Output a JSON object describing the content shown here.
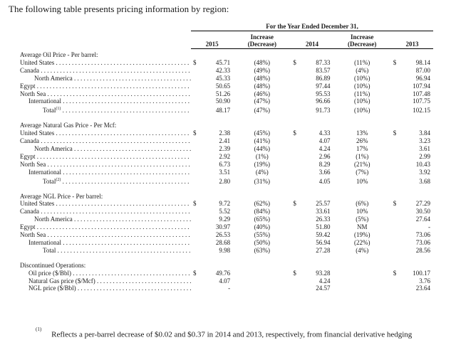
{
  "intro": "The following table presents pricing information by region:",
  "period_title": "For the Year Ended December 31,",
  "headers": {
    "y2015": "2015",
    "inc1": "Increase\n(Decrease)",
    "y2014": "2014",
    "inc2": "Increase\n(Decrease)",
    "y2013": "2013"
  },
  "sections": [
    {
      "title": "Average Oil Price - Per barrel:",
      "rows": [
        {
          "label": "United States",
          "indent": 1,
          "dots": true,
          "dollar": true,
          "v2015": "45.71",
          "c1": "(48%)",
          "v2014": "87.33",
          "c2": "(11%)",
          "v2013": "98.14"
        },
        {
          "label": "Canada",
          "indent": 1,
          "dots": true,
          "dollar": false,
          "v2015": "42.33",
          "c1": "(49%)",
          "v2014": "83.57",
          "c2": "(4%)",
          "v2013": "87.00"
        },
        {
          "label": "North America",
          "indent": 3,
          "dots": true,
          "dollar": false,
          "v2015": "45.33",
          "c1": "(48%)",
          "v2014": "86.89",
          "c2": "(10%)",
          "v2013": "96.94"
        },
        {
          "label": "Egypt",
          "indent": 1,
          "dots": true,
          "dollar": false,
          "v2015": "50.65",
          "c1": "(48%)",
          "v2014": "97.44",
          "c2": "(10%)",
          "v2013": "107.94"
        },
        {
          "label": "North Sea",
          "indent": 1,
          "dots": true,
          "dollar": false,
          "v2015": "51.26",
          "c1": "(46%)",
          "v2014": "95.53",
          "c2": "(11%)",
          "v2013": "107.48"
        },
        {
          "label": "International",
          "indent": 2,
          "dots": true,
          "dollar": false,
          "v2015": "50.90",
          "c1": "(47%)",
          "v2014": "96.66",
          "c2": "(10%)",
          "v2013": "107.75"
        },
        {
          "label": "Total",
          "fn": "(1)",
          "indent": 4,
          "dots": true,
          "dollar": false,
          "v2015": "48.17",
          "c1": "(47%)",
          "v2014": "91.73",
          "c2": "(10%)",
          "v2013": "102.15"
        }
      ]
    },
    {
      "title": "Average Natural Gas Price - Per Mcf:",
      "rows": [
        {
          "label": "United States",
          "indent": 1,
          "dots": true,
          "dollar": true,
          "v2015": "2.38",
          "c1": "(45%)",
          "v2014": "4.33",
          "c2": "13%",
          "v2013": "3.84"
        },
        {
          "label": "Canada",
          "indent": 1,
          "dots": true,
          "dollar": false,
          "v2015": "2.41",
          "c1": "(41%)",
          "v2014": "4.07",
          "c2": "26%",
          "v2013": "3.23"
        },
        {
          "label": "North America",
          "indent": 3,
          "dots": true,
          "dollar": false,
          "v2015": "2.39",
          "c1": "(44%)",
          "v2014": "4.24",
          "c2": "17%",
          "v2013": "3.61"
        },
        {
          "label": "Egypt",
          "indent": 1,
          "dots": true,
          "dollar": false,
          "v2015": "2.92",
          "c1": "(1%)",
          "v2014": "2.96",
          "c2": "(1%)",
          "v2013": "2.99"
        },
        {
          "label": "North Sea",
          "indent": 1,
          "dots": true,
          "dollar": false,
          "v2015": "6.73",
          "c1": "(19%)",
          "v2014": "8.29",
          "c2": "(21%)",
          "v2013": "10.43"
        },
        {
          "label": "International",
          "indent": 2,
          "dots": true,
          "dollar": false,
          "v2015": "3.51",
          "c1": "(4%)",
          "v2014": "3.66",
          "c2": "(7%)",
          "v2013": "3.92"
        },
        {
          "label": "Total",
          "fn": "(2)",
          "indent": 4,
          "dots": true,
          "dollar": false,
          "v2015": "2.80",
          "c1": "(31%)",
          "v2014": "4.05",
          "c2": "10%",
          "v2013": "3.68"
        }
      ]
    },
    {
      "title": "Average NGL Price - Per barrel:",
      "rows": [
        {
          "label": "United States",
          "indent": 1,
          "dots": true,
          "dollar": true,
          "v2015": "9.72",
          "c1": "(62%)",
          "v2014": "25.57",
          "c2": "(6%)",
          "v2013": "27.29"
        },
        {
          "label": "Canada",
          "indent": 1,
          "dots": true,
          "dollar": false,
          "v2015": "5.52",
          "c1": "(84%)",
          "v2014": "33.61",
          "c2": "10%",
          "v2013": "30.50"
        },
        {
          "label": "North America",
          "indent": 3,
          "dots": true,
          "dollar": false,
          "v2015": "9.29",
          "c1": "(65%)",
          "v2014": "26.33",
          "c2": "(5%)",
          "v2013": "27.64"
        },
        {
          "label": "Egypt",
          "indent": 1,
          "dots": true,
          "dollar": false,
          "v2015": "30.97",
          "c1": "(40%)",
          "v2014": "51.80",
          "c2": "NM",
          "v2013": "-"
        },
        {
          "label": "North Sea",
          "indent": 1,
          "dots": true,
          "dollar": false,
          "v2015": "26.53",
          "c1": "(55%)",
          "v2014": "59.42",
          "c2": "(19%)",
          "v2013": "73.06"
        },
        {
          "label": "International",
          "indent": 2,
          "dots": true,
          "dollar": false,
          "v2015": "28.68",
          "c1": "(50%)",
          "v2014": "56.94",
          "c2": "(22%)",
          "v2013": "73.06"
        },
        {
          "label": "Total",
          "indent": 4,
          "dots": true,
          "dollar": false,
          "v2015": "9.98",
          "c1": "(63%)",
          "v2014": "27.28",
          "c2": "(4%)",
          "v2013": "28.56"
        }
      ]
    },
    {
      "title": "Discontinued Operations:",
      "rows": [
        {
          "label": "Oil price ($/Bbl)",
          "indent": 2,
          "dots": true,
          "dollar": true,
          "v2015": "49.76",
          "c1": "",
          "v2014": "93.28",
          "c2": "",
          "v2013": "100.17"
        },
        {
          "label": "Natural Gas price ($/Mcf)",
          "indent": 2,
          "dots": true,
          "dollar": false,
          "v2015": "4.07",
          "c1": "",
          "v2014": "4.24",
          "c2": "",
          "v2013": "3.76"
        },
        {
          "label": "NGL price ($/Bbl)",
          "indent": 2,
          "dots": true,
          "dollar": false,
          "v2015": "-",
          "c1": "",
          "v2014": "24.57",
          "c2": "",
          "v2013": "23.64"
        }
      ]
    }
  ],
  "footnote": {
    "marker": "(1)",
    "text": "Reflects a per-barrel decrease of $0.02 and $0.37 in 2014 and 2013, respectively, from financial derivative hedging"
  }
}
